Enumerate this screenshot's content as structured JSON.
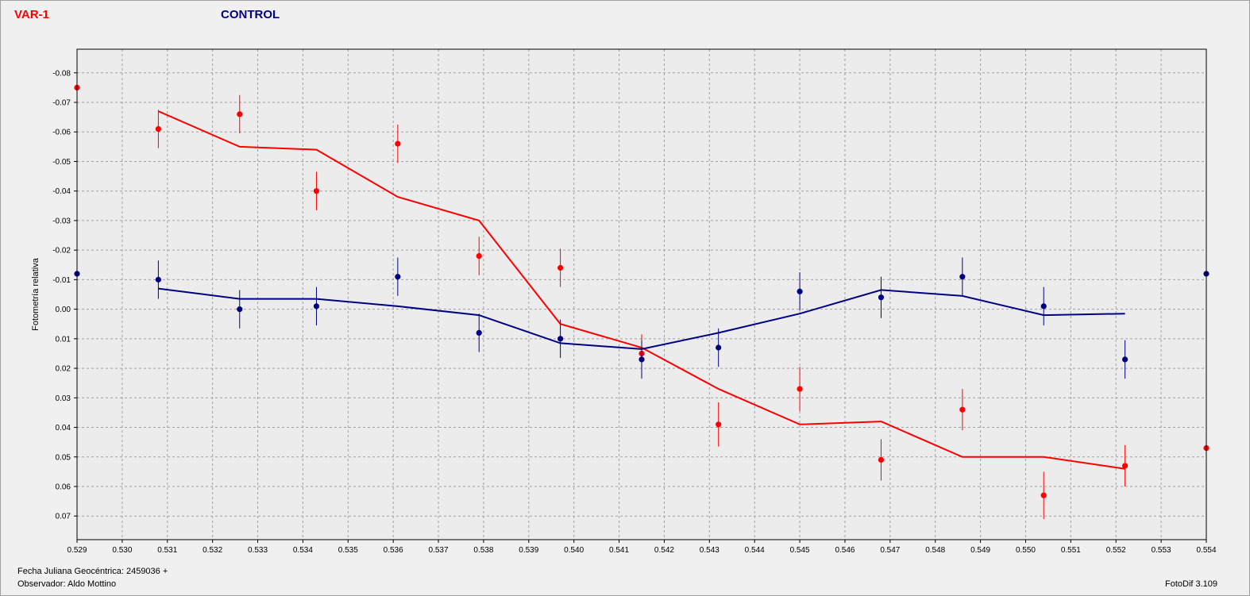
{
  "legend": {
    "var_label": "VAR-1",
    "control_label": "CONTROL"
  },
  "footer": {
    "date_label": "Fecha Juliana Geocéntrica: 2459036 +",
    "observer": "Observador: Aldo Mottino",
    "software": "FotoDif 3.109"
  },
  "colors": {
    "var": "#ff0000",
    "control": "#000080",
    "grid": "#a0a0a0",
    "plot_bg": "#ececec"
  },
  "chart_data": {
    "type": "scatter",
    "ylabel": "Fotometría relativa",
    "xlim": [
      0.529,
      0.554
    ],
    "ylim": [
      0.078,
      -0.088
    ],
    "y_inverted": true,
    "grid": true,
    "x_ticks": [
      "0.529",
      "0.530",
      "0.531",
      "0.532",
      "0.533",
      "0.534",
      "0.535",
      "0.536",
      "0.537",
      "0.538",
      "0.539",
      "0.540",
      "0.541",
      "0.542",
      "0.543",
      "0.544",
      "0.545",
      "0.546",
      "0.547",
      "0.548",
      "0.549",
      "0.550",
      "0.551",
      "0.552",
      "0.553",
      "0.554"
    ],
    "y_ticks": [
      "-0.08",
      "-0.07",
      "-0.06",
      "-0.05",
      "-0.04",
      "-0.03",
      "-0.02",
      "-0.01",
      "0.00",
      "0.01",
      "0.02",
      "0.03",
      "0.04",
      "0.05",
      "0.06",
      "0.07"
    ],
    "series": [
      {
        "key": "var",
        "x": [
          0.529,
          0.5308,
          0.5326,
          0.5343,
          0.5361,
          0.5379,
          0.5397,
          0.5415,
          0.5432,
          0.545,
          0.5468,
          0.5486,
          0.5504,
          0.5522,
          0.554
        ],
        "y": [
          -0.075,
          -0.061,
          -0.066,
          -0.04,
          -0.056,
          -0.018,
          -0.014,
          0.015,
          0.039,
          0.027,
          0.051,
          0.034,
          0.063,
          0.053,
          0.047
        ],
        "err": [
          0.0075,
          0.0065,
          0.0065,
          0.0065,
          0.0065,
          0.0065,
          0.0065,
          0.0065,
          0.0075,
          0.0075,
          0.007,
          0.007,
          0.008,
          0.007,
          0.007
        ],
        "fit": [
          [
            0.5308,
            -0.067
          ],
          [
            0.5326,
            -0.055
          ],
          [
            0.5343,
            -0.054
          ],
          [
            0.5361,
            -0.038
          ],
          [
            0.5379,
            -0.03
          ],
          [
            0.5397,
            0.005
          ],
          [
            0.5415,
            0.013
          ],
          [
            0.5432,
            0.027
          ],
          [
            0.545,
            0.039
          ],
          [
            0.5468,
            0.038
          ],
          [
            0.5486,
            0.05
          ],
          [
            0.5504,
            0.05
          ],
          [
            0.5522,
            0.054
          ]
        ]
      },
      {
        "key": "control",
        "x": [
          0.529,
          0.5308,
          0.5326,
          0.5343,
          0.5361,
          0.5379,
          0.5397,
          0.5415,
          0.5432,
          0.545,
          0.5468,
          0.5486,
          0.5504,
          0.5522,
          0.554
        ],
        "y": [
          -0.012,
          -0.01,
          0.0,
          -0.001,
          -0.011,
          0.008,
          0.01,
          0.017,
          0.013,
          -0.006,
          -0.004,
          -0.011,
          -0.001,
          0.017,
          -0.012
        ],
        "err": [
          0.0065,
          0.0065,
          0.0065,
          0.0065,
          0.0065,
          0.0065,
          0.0065,
          0.0065,
          0.0065,
          0.0065,
          0.007,
          0.0065,
          0.0065,
          0.0065,
          0.0065
        ],
        "fit": [
          [
            0.5308,
            -0.007
          ],
          [
            0.5326,
            -0.0035
          ],
          [
            0.5343,
            -0.0035
          ],
          [
            0.5361,
            -0.001
          ],
          [
            0.5379,
            0.002
          ],
          [
            0.5397,
            0.0115
          ],
          [
            0.5415,
            0.0135
          ],
          [
            0.5432,
            0.008
          ],
          [
            0.545,
            0.0015
          ],
          [
            0.5468,
            -0.0065
          ],
          [
            0.5486,
            -0.0045
          ],
          [
            0.5504,
            0.002
          ],
          [
            0.5522,
            0.0015
          ]
        ]
      }
    ]
  }
}
